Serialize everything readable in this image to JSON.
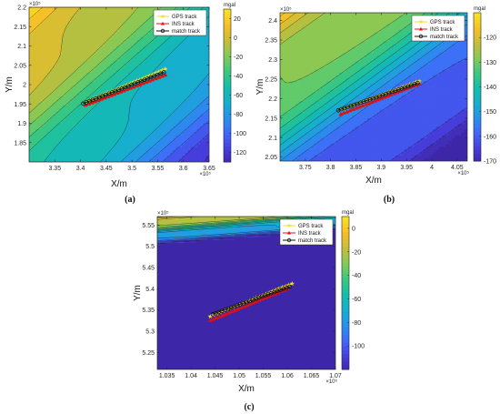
{
  "chart_data": [
    {
      "type": "contour",
      "panel": "(a)",
      "xlabel": "X/m",
      "ylabel": "Y/m",
      "x_exponent": "×10⁵",
      "y_exponent": "×10⁵",
      "xlim": [
        3.3,
        3.65
      ],
      "ylim": [
        1.8,
        2.2
      ],
      "xticks": [
        "3.35",
        "3.4",
        "3.45",
        "3.5",
        "3.55",
        "3.6",
        "3.65"
      ],
      "yticks": [
        "1.85",
        "1.9",
        "1.95",
        "2",
        "2.05",
        "2.1",
        "2.15",
        "2.2"
      ],
      "colorbar": {
        "unit": "mgal",
        "min": -130,
        "max": 30,
        "ticks": [
          "20",
          "0",
          "-20",
          "-40",
          "-60",
          "-80",
          "-100",
          "-120"
        ]
      },
      "legend": [
        "GPS track",
        "INS track",
        "match track"
      ],
      "field": {
        "ref": [
          3.3,
          2.2
        ],
        "dir": [
          1,
          -0.75
        ],
        "grad": 280,
        "ref_val": 30,
        "warp_amp": 0.03,
        "warp_freq": 20
      },
      "series": [
        {
          "name": "GPS track",
          "color": "#f2e224",
          "marker": "star",
          "start": [
            3.41,
            1.955
          ],
          "end": [
            3.565,
            2.04
          ]
        },
        {
          "name": "INS track",
          "color": "#e01010",
          "marker": "triangle",
          "start": [
            3.41,
            1.947
          ],
          "end": [
            3.565,
            2.025
          ]
        },
        {
          "name": "match track",
          "color": "#111111",
          "marker": "circle",
          "start": [
            3.405,
            1.951
          ],
          "end": [
            3.562,
            2.032
          ]
        }
      ]
    },
    {
      "type": "contour",
      "panel": "(b)",
      "xlabel": "X/m",
      "ylabel": "Y/m",
      "x_exponent": "×10⁵",
      "y_exponent": "×10⁵",
      "xlim": [
        3.7,
        4.07
      ],
      "ylim": [
        2.04,
        2.42
      ],
      "xticks": [
        "3.75",
        "3.8",
        "3.85",
        "3.9",
        "3.95",
        "4",
        "4.05"
      ],
      "yticks": [
        "2.05",
        "2.1",
        "2.15",
        "2.2",
        "2.25",
        "2.3",
        "2.35",
        "2.4"
      ],
      "colorbar": {
        "unit": "mgal",
        "min": -170,
        "max": -110,
        "ticks": [
          "-120",
          "-130",
          "-140",
          "-150",
          "-160",
          "-170"
        ]
      },
      "legend": [
        "GPS track",
        "INS track",
        "match track"
      ],
      "field": {
        "ref": [
          3.7,
          2.42
        ],
        "dir": [
          1,
          -1.1
        ],
        "grad": 130,
        "ref_val": -112,
        "warp_amp": 0.04,
        "warp_freq": 18
      },
      "series": [
        {
          "name": "GPS track",
          "color": "#f2e224",
          "marker": "star",
          "start": [
            3.82,
            2.172
          ],
          "end": [
            3.975,
            2.245
          ]
        },
        {
          "name": "INS track",
          "color": "#e01010",
          "marker": "triangle",
          "start": [
            3.82,
            2.16
          ],
          "end": [
            3.975,
            2.238
          ]
        },
        {
          "name": "match track",
          "color": "#111111",
          "marker": "circle",
          "start": [
            3.815,
            2.17
          ],
          "end": [
            3.972,
            2.24
          ]
        }
      ]
    },
    {
      "type": "contour",
      "panel": "(c)",
      "xlabel": "X/m",
      "ylabel": "Y/m",
      "x_exponent": "×10⁶",
      "y_exponent": "×10⁵",
      "xlim": [
        1.033,
        1.07
      ],
      "ylim": [
        5.21,
        5.57
      ],
      "xticks": [
        "1.035",
        "1.04",
        "1.045",
        "1.05",
        "1.055",
        "1.06",
        "1.065",
        "1.07"
      ],
      "yticks": [
        "5.25",
        "5.3",
        "5.35",
        "5.4",
        "5.45",
        "5.5",
        "5.55"
      ],
      "colorbar": {
        "unit": "mgal",
        "min": -120,
        "max": 10,
        "ticks": [
          "0",
          "-20",
          "-40",
          "-60",
          "-80",
          "-100"
        ]
      },
      "legend": [
        "GPS track",
        "INS track",
        "match track"
      ],
      "field": {
        "ref": [
          1.033,
          5.57
        ],
        "dir": [
          1,
          -1.2
        ],
        "grad": 2400,
        "ref_val": 8,
        "warp_amp": 0.004,
        "warp_freq": 200
      },
      "series": [
        {
          "name": "GPS track",
          "color": "#f2e224",
          "marker": "star",
          "start": [
            1.044,
            5.335
          ],
          "end": [
            1.061,
            5.412
          ]
        },
        {
          "name": "INS track",
          "color": "#e01010",
          "marker": "triangle",
          "start": [
            1.044,
            5.325
          ],
          "end": [
            1.06,
            5.4
          ]
        },
        {
          "name": "match track",
          "color": "#111111",
          "marker": "circle",
          "start": [
            1.0445,
            5.34
          ],
          "end": [
            1.0605,
            5.405
          ]
        }
      ]
    }
  ]
}
